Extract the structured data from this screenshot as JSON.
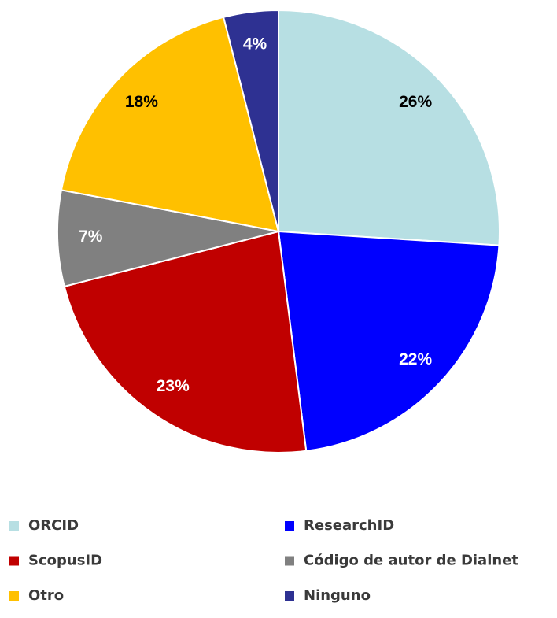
{
  "chart_data": {
    "type": "pie",
    "categories": [
      "ORCID",
      "ResearchID",
      "ScopusID",
      "Código de autor de Dialnet",
      "Otro",
      "Ninguno"
    ],
    "values": [
      26,
      22,
      23,
      7,
      18,
      4
    ],
    "value_labels": [
      "26%",
      "22%",
      "23%",
      "7%",
      "18%",
      "4%"
    ],
    "colors": [
      "#b7dfe3",
      "#0000ff",
      "#c00000",
      "#808080",
      "#ffc000",
      "#2e3192"
    ],
    "label_colors": [
      "#000000",
      "#ffffff",
      "#ffffff",
      "#ffffff",
      "#000000",
      "#ffffff"
    ],
    "legend": "bottom"
  }
}
